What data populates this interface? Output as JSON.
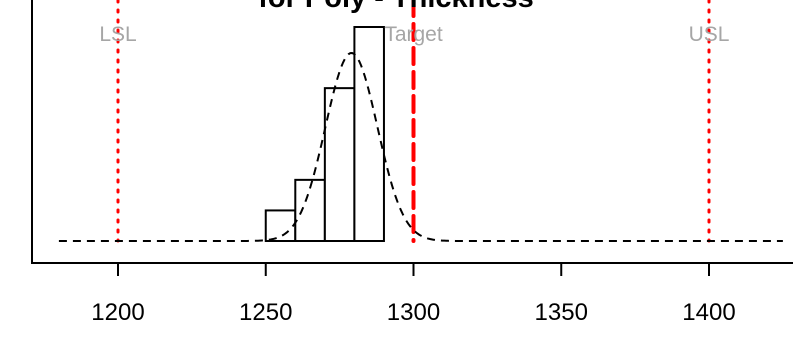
{
  "chart_data": {
    "type": "bar",
    "title": "for Poly - Thickness",
    "xlabel": "",
    "ylabel": "",
    "xlim": [
      1180,
      1425
    ],
    "ylim": [
      0,
      1.45
    ],
    "x_ticks": [
      {
        "value": 1200,
        "label": "1200"
      },
      {
        "value": 1250,
        "label": "1250"
      },
      {
        "value": 1300,
        "label": "1300"
      },
      {
        "value": 1350,
        "label": "1350"
      },
      {
        "value": 1400,
        "label": "1400"
      }
    ],
    "bins": [
      {
        "start": 1250,
        "end": 1260,
        "density": 0.2
      },
      {
        "start": 1260,
        "end": 1270,
        "density": 0.4
      },
      {
        "start": 1270,
        "end": 1280,
        "density": 1.0
      },
      {
        "start": 1280,
        "end": 1290,
        "density": 1.4
      }
    ],
    "density_curve": {
      "mean": 1279,
      "sd": 8.8,
      "peak": 1.23,
      "x_range": [
        1180,
        1425
      ]
    },
    "spec_lines": [
      {
        "name": "LSL",
        "label": "LSL",
        "value": 1200,
        "style": "dotted"
      },
      {
        "name": "Target",
        "label": "Target",
        "value": 1300,
        "style": "dashed"
      },
      {
        "name": "USL",
        "label": "USL",
        "value": 1400,
        "style": "dotted"
      }
    ],
    "grid": false,
    "legend": "none"
  },
  "colors": {
    "spec_line": "#ff0000",
    "spec_label": "#a6a6a6",
    "bar_fill": "#ffffff",
    "bar_stroke": "#000000",
    "curve": "#000000",
    "axis": "#000000"
  }
}
